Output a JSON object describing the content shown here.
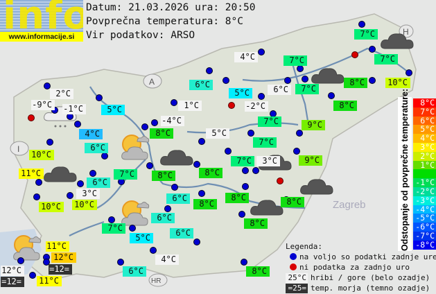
{
  "logo": {
    "word": "info",
    "url": "www.informacije.si"
  },
  "header": {
    "date_line": "Datum: 21.03.2026 ura: 20:50",
    "avg_line": "Povprečna temperatura: 8°C",
    "source_line": "Vir podatkov: ARSO"
  },
  "colors": {
    "mountain": "#f4f4f4",
    "sea": "#333333",
    "c4": "#22bbff",
    "c5": "#00eeff",
    "c6": "#22eecc",
    "c7": "#00ee77",
    "c8": "#11dd11",
    "c9": "#77ee00",
    "c10": "#ccff00",
    "c11": "#ffff00",
    "c12": "#ffcc00",
    "station_ok": "#0000d0",
    "station_missing": "#d80000"
  },
  "stations": [
    {
      "t": "2°C",
      "c": "mountain"
    },
    {
      "t": "-9°C",
      "c": "mountain"
    },
    {
      "t": "-1°C",
      "c": "mountain"
    },
    {
      "t": "5°C",
      "c": "c5"
    },
    {
      "t": "4°C",
      "c": "c4"
    },
    {
      "t": "6°C",
      "c": "c6"
    },
    {
      "t": "10°C",
      "c": "c10"
    },
    {
      "t": "6°C",
      "c": "c6"
    },
    {
      "t": "1°C",
      "c": "mountain"
    },
    {
      "t": "-4°C",
      "c": "mountain"
    },
    {
      "t": "8°C",
      "c": "c8"
    },
    {
      "t": "5°C",
      "c": "mountain"
    },
    {
      "t": "4°C",
      "c": "mountain"
    },
    {
      "t": "7°C",
      "c": "c7"
    },
    {
      "t": "5°C",
      "c": "c5"
    },
    {
      "t": "6°C",
      "c": "mountain"
    },
    {
      "t": "7°C",
      "c": "c7"
    },
    {
      "t": "-2°C",
      "c": "mountain"
    },
    {
      "t": "7°C",
      "c": "c7"
    },
    {
      "t": "9°C",
      "c": "c9"
    },
    {
      "t": "7°C",
      "c": "c7"
    },
    {
      "t": "7°C",
      "c": "c7"
    },
    {
      "t": "3°C",
      "c": "mountain"
    },
    {
      "t": "9°C",
      "c": "c9"
    },
    {
      "t": "7°C",
      "c": "c7"
    },
    {
      "t": "7°C",
      "c": "c7"
    },
    {
      "t": "8°C",
      "c": "c8"
    },
    {
      "t": "10°C",
      "c": "c10"
    },
    {
      "t": "8°C",
      "c": "c8"
    },
    {
      "t": "11°C",
      "c": "c11"
    },
    {
      "t": "6°C",
      "c": "c6"
    },
    {
      "t": "7°C",
      "c": "c7"
    },
    {
      "t": "8°C",
      "c": "c8"
    },
    {
      "t": "8°C",
      "c": "c8"
    },
    {
      "t": "3°C",
      "c": "mountain"
    },
    {
      "t": "10°C",
      "c": "c10"
    },
    {
      "t": "10°C",
      "c": "c10"
    },
    {
      "t": "6°C",
      "c": "c6"
    },
    {
      "t": "8°C",
      "c": "c8"
    },
    {
      "t": "8°C",
      "c": "c8"
    },
    {
      "t": "8°C",
      "c": "c8"
    },
    {
      "t": "6°C",
      "c": "c6"
    },
    {
      "t": "7°C",
      "c": "c7"
    },
    {
      "t": "5°C",
      "c": "c5"
    },
    {
      "t": "6°C",
      "c": "c6"
    },
    {
      "t": "8°C",
      "c": "c8"
    },
    {
      "t": "11°C",
      "c": "c11"
    },
    {
      "t": "12°C",
      "c": "c12"
    },
    {
      "t": "=12=",
      "c": "sea"
    },
    {
      "t": "12°C",
      "c": "mountain"
    },
    {
      "t": "=12=",
      "c": "sea"
    },
    {
      "t": "11°C",
      "c": "c11"
    },
    {
      "t": "4°C",
      "c": "mountain"
    },
    {
      "t": "6°C",
      "c": "c6"
    },
    {
      "t": "8°C",
      "c": "c8"
    }
  ],
  "weather_icons": [
    "partly-cloudy-rain",
    "sun-cloud",
    "overcast",
    "overcast",
    "sun-cloud",
    "sun-cloud",
    "overcast",
    "overcast",
    "overcast",
    "overcast",
    "overcast"
  ],
  "scale": {
    "title": "Odstopanje od povprečne temperature:",
    "bands": [
      {
        "t": "8°C",
        "color": "#ff0000"
      },
      {
        "t": "7°C",
        "color": "#ff3300"
      },
      {
        "t": "6°C",
        "color": "#ff6600"
      },
      {
        "t": "5°C",
        "color": "#ff9900"
      },
      {
        "t": "4°C",
        "color": "#ffbb00"
      },
      {
        "t": "3°C",
        "color": "#ffee00"
      },
      {
        "t": "2°C",
        "color": "#ccee00"
      },
      {
        "t": "1°C",
        "color": "#66dd00"
      },
      {
        "t": "",
        "color": "#00dd00"
      },
      {
        "t": "-1°C",
        "color": "#00dd55"
      },
      {
        "t": "-2°C",
        "color": "#00dd99"
      },
      {
        "t": "-3°C",
        "color": "#00eedd"
      },
      {
        "t": "-4°C",
        "color": "#00bbff"
      },
      {
        "t": "-5°C",
        "color": "#0088ff"
      },
      {
        "t": "-6°C",
        "color": "#0055ff"
      },
      {
        "t": "-7°C",
        "color": "#0033ee"
      },
      {
        "t": "-8°C",
        "color": "#0000ee"
      }
    ]
  },
  "legend": {
    "title": "Legenda:",
    "ok": "na voljo so podatki zadnje ure",
    "missing": "ni podatka za zadnjo uro",
    "mountain_sample": "25°C",
    "mountain_text": "hribi / gore (belo ozadje)",
    "sea_sample": "=25=",
    "sea_text": "temp. morja (temno ozadje)"
  },
  "map_labels": {
    "austria": "A",
    "italy": "I",
    "hungary": "H",
    "croatia": "HR",
    "zagreb": "Zagreb"
  }
}
